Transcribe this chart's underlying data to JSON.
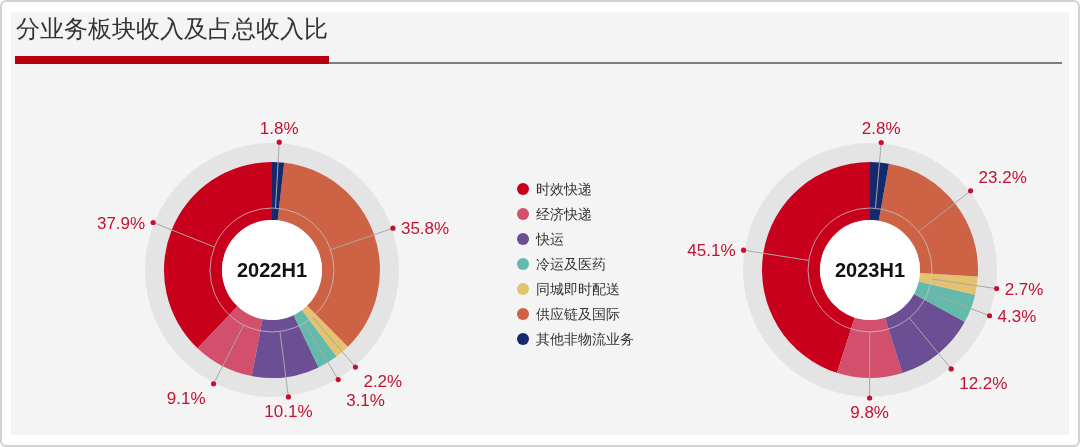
{
  "chart_data": {
    "type": "donut",
    "title": "分业务板块收入及占总收入比",
    "categories": [
      "时效快递",
      "经济快递",
      "快运",
      "冷运及医药",
      "同城即时配送",
      "供应链及国际",
      "其他非物流业务"
    ],
    "colors": [
      "#c9001c",
      "#d2506b",
      "#6b4e94",
      "#63b9aa",
      "#e5c26f",
      "#cd6245",
      "#142a6c"
    ],
    "series": [
      {
        "name": "2022H1",
        "values": [
          37.9,
          9.1,
          10.1,
          3.1,
          2.2,
          35.8,
          1.8
        ],
        "value_labels": [
          "37.9%",
          "9.1%",
          "10.1%",
          "3.1%",
          "2.2%",
          "35.8%",
          "1.8%"
        ]
      },
      {
        "name": "2023H1",
        "values": [
          45.1,
          9.8,
          12.2,
          4.3,
          2.7,
          23.2,
          2.8
        ],
        "value_labels": [
          "45.1%",
          "9.8%",
          "12.2%",
          "4.3%",
          "2.7%",
          "23.2%",
          "2.8%"
        ]
      }
    ],
    "legend": "center"
  }
}
